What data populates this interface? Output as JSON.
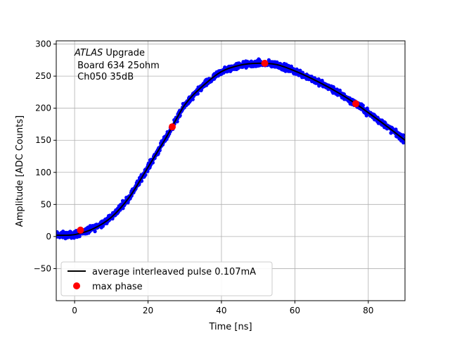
{
  "chart_data": {
    "type": "scatter",
    "title": "",
    "annotation": {
      "line1_italic": "ATLAS",
      "line1_rest": " Upgrade",
      "line2": " Board 634 25ohm",
      "line3": " Ch050 35dB"
    },
    "xlabel": "Time [ns]",
    "ylabel": "Amplitude [ADC Counts]",
    "xlim": [
      -5,
      90
    ],
    "ylim": [
      -100,
      305
    ],
    "xticks": [
      0,
      20,
      40,
      60,
      80
    ],
    "yticks": [
      -50,
      0,
      50,
      100,
      150,
      200,
      250,
      300
    ],
    "grid": true,
    "legend_position": "lower-left",
    "series": [
      {
        "name": "",
        "kind": "scatter-dense",
        "color": "#0000ff",
        "x_range": [
          -5,
          90
        ],
        "points": [
          [
            -5,
            2
          ],
          [
            0,
            3
          ],
          [
            5,
            12
          ],
          [
            10,
            30
          ],
          [
            15,
            62
          ],
          [
            20,
            108
          ],
          [
            25,
            155
          ],
          [
            30,
            205
          ],
          [
            35,
            235
          ],
          [
            40,
            257
          ],
          [
            45,
            267
          ],
          [
            50,
            270
          ],
          [
            55,
            268
          ],
          [
            60,
            258
          ],
          [
            65,
            245
          ],
          [
            70,
            230
          ],
          [
            75,
            213
          ],
          [
            80,
            193
          ],
          [
            85,
            172
          ],
          [
            90,
            150
          ]
        ],
        "spread": 5
      },
      {
        "name": "average interleaved pulse 0.107mA",
        "kind": "line",
        "color": "#000000",
        "points": [
          [
            -5,
            2
          ],
          [
            0,
            3
          ],
          [
            5,
            12
          ],
          [
            10,
            30
          ],
          [
            15,
            62
          ],
          [
            20,
            108
          ],
          [
            25,
            155
          ],
          [
            30,
            205
          ],
          [
            35,
            235
          ],
          [
            40,
            257
          ],
          [
            45,
            267
          ],
          [
            50,
            270
          ],
          [
            55,
            268
          ],
          [
            60,
            258
          ],
          [
            65,
            245
          ],
          [
            70,
            230
          ],
          [
            75,
            213
          ],
          [
            80,
            193
          ],
          [
            85,
            172
          ],
          [
            90,
            150
          ]
        ]
      },
      {
        "name": "max phase",
        "kind": "markers",
        "color": "#ff0000",
        "points": [
          [
            1.6,
            10
          ],
          [
            26.6,
            171
          ],
          [
            51.8,
            270
          ],
          [
            76.6,
            207
          ]
        ]
      }
    ]
  }
}
